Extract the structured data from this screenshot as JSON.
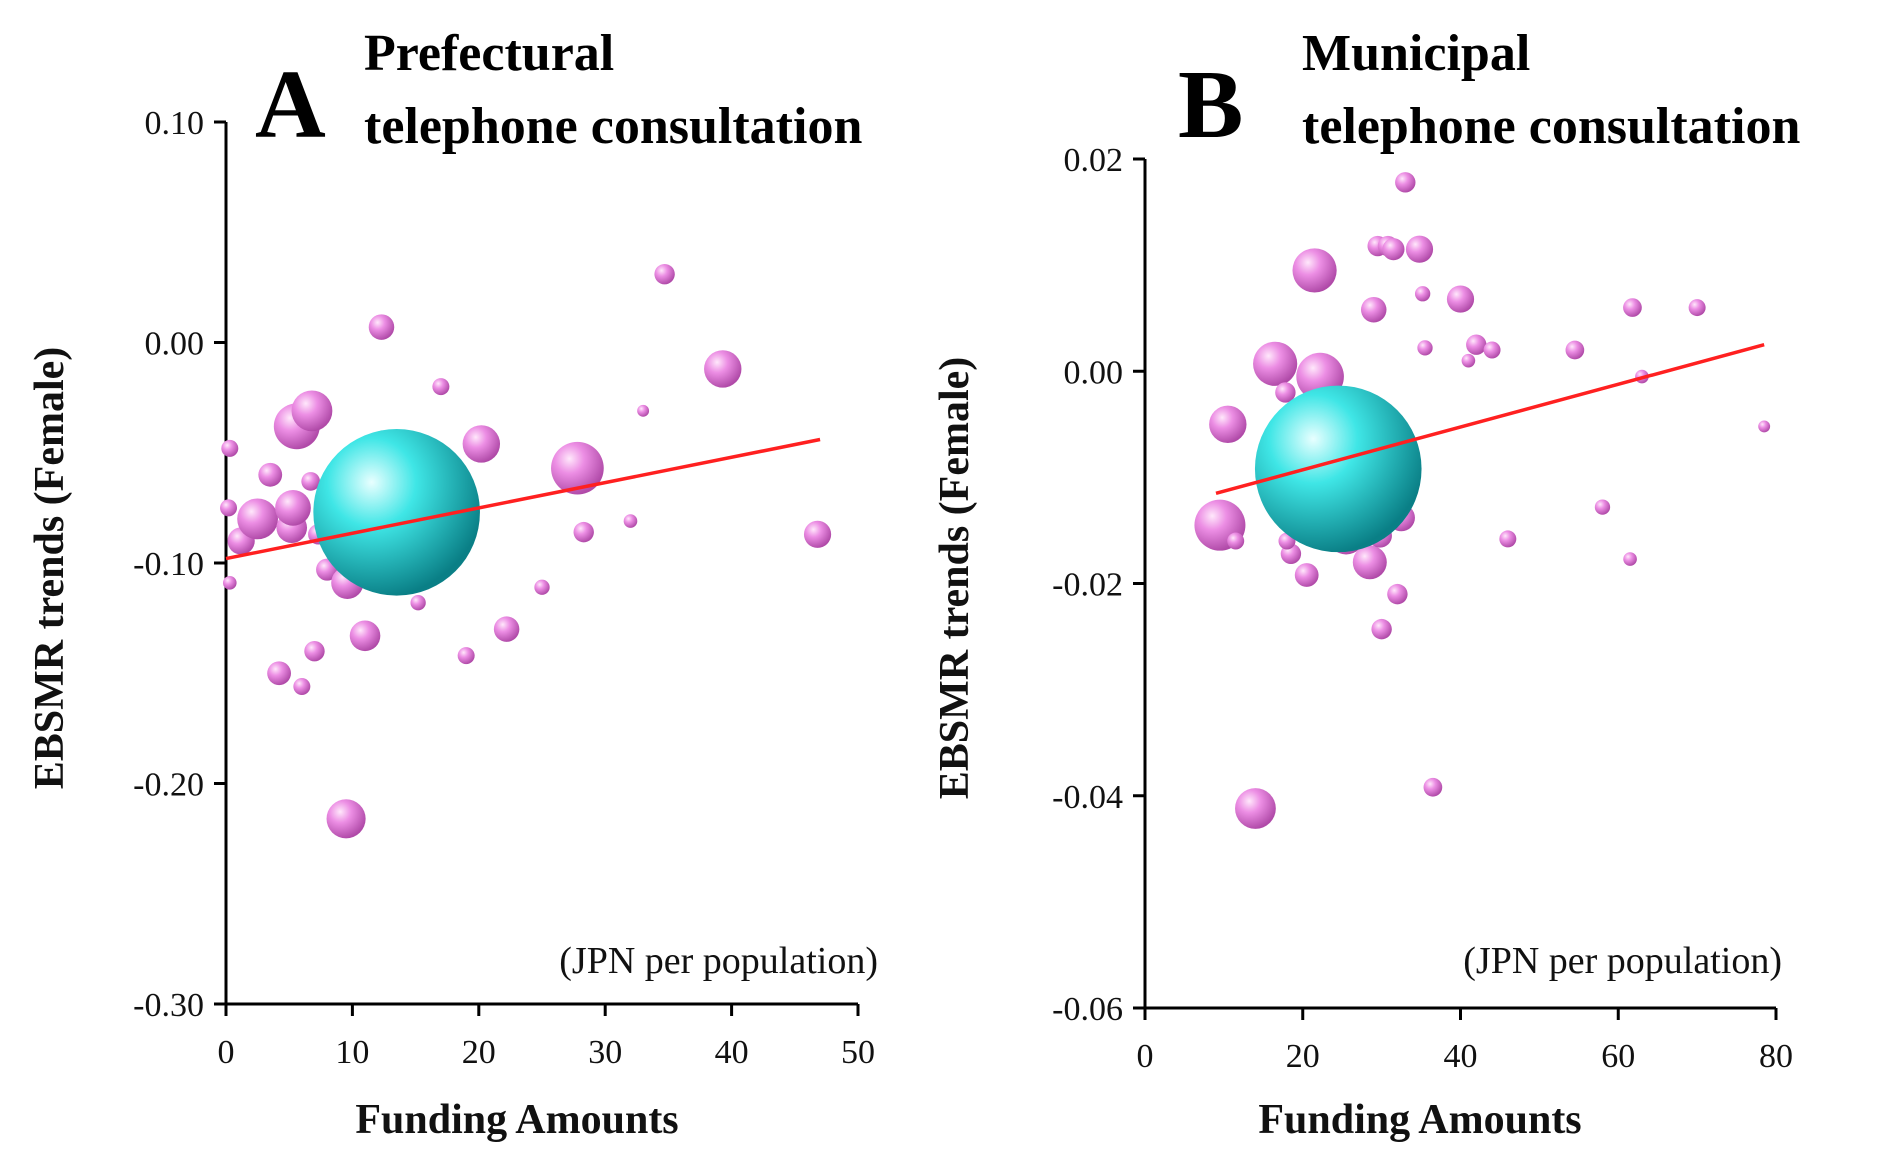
{
  "chart_data": [
    {
      "type": "scatter",
      "panel_letter": "A",
      "title_line1": "Prefectural",
      "title_line2": "telephone consultation",
      "xlabel": "Funding Amounts",
      "ylabel": "EBSMR trends (Female)",
      "unit_note": "(JPN per population)",
      "xlim": [
        0,
        50
      ],
      "ylim": [
        -0.3,
        0.1
      ],
      "x_ticks": [
        "0",
        "10",
        "20",
        "30",
        "40",
        "50"
      ],
      "y_ticks": [
        "-0.30",
        "-0.20",
        "-0.10",
        "0.00",
        "0.10"
      ],
      "trend_line": {
        "x": [
          0,
          47
        ],
        "y": [
          -0.098,
          -0.044
        ],
        "color": "#ff2020"
      },
      "colors": {
        "bubble": "#e070d8",
        "highlight": "#20d8d8"
      },
      "highlight_point": {
        "x": 13.5,
        "y": -0.077,
        "size": 8.5
      },
      "points": [
        {
          "x": 0.3,
          "y": -0.048,
          "size": 1.0
        },
        {
          "x": 0.2,
          "y": -0.075,
          "size": 1.0
        },
        {
          "x": 0.3,
          "y": -0.109,
          "size": 0.8
        },
        {
          "x": 1.2,
          "y": -0.09,
          "size": 1.6
        },
        {
          "x": 2.5,
          "y": -0.08,
          "size": 2.4
        },
        {
          "x": 3.5,
          "y": -0.06,
          "size": 1.4
        },
        {
          "x": 4.2,
          "y": -0.15,
          "size": 1.4
        },
        {
          "x": 5.2,
          "y": -0.084,
          "size": 1.8
        },
        {
          "x": 5.3,
          "y": -0.075,
          "size": 2.1
        },
        {
          "x": 5.6,
          "y": -0.038,
          "size": 2.7
        },
        {
          "x": 6.8,
          "y": -0.031,
          "size": 2.4
        },
        {
          "x": 6.0,
          "y": -0.156,
          "size": 1.0
        },
        {
          "x": 6.7,
          "y": -0.063,
          "size": 1.1
        },
        {
          "x": 7.0,
          "y": -0.14,
          "size": 1.2
        },
        {
          "x": 7.3,
          "y": -0.087,
          "size": 1.2
        },
        {
          "x": 8.0,
          "y": -0.103,
          "size": 1.3
        },
        {
          "x": 8.7,
          "y": -0.085,
          "size": 1.6
        },
        {
          "x": 9.0,
          "y": -0.079,
          "size": 1.2
        },
        {
          "x": 9.2,
          "y": -0.099,
          "size": 1.0
        },
        {
          "x": 9.5,
          "y": -0.216,
          "size": 2.3
        },
        {
          "x": 9.6,
          "y": -0.109,
          "size": 1.9
        },
        {
          "x": 10.5,
          "y": -0.066,
          "size": 1.5
        },
        {
          "x": 11.0,
          "y": -0.133,
          "size": 1.8
        },
        {
          "x": 11.5,
          "y": -0.059,
          "size": 1.0
        },
        {
          "x": 11.7,
          "y": -0.085,
          "size": 1.3
        },
        {
          "x": 12.3,
          "y": 0.007,
          "size": 1.5
        },
        {
          "x": 13.0,
          "y": -0.097,
          "size": 0.8
        },
        {
          "x": 15.2,
          "y": -0.118,
          "size": 0.9
        },
        {
          "x": 15.5,
          "y": -0.05,
          "size": 0.9
        },
        {
          "x": 16.3,
          "y": -0.076,
          "size": 1.2
        },
        {
          "x": 17.0,
          "y": -0.02,
          "size": 1.0
        },
        {
          "x": 19.0,
          "y": -0.142,
          "size": 1.0
        },
        {
          "x": 20.2,
          "y": -0.046,
          "size": 2.2
        },
        {
          "x": 22.2,
          "y": -0.13,
          "size": 1.5
        },
        {
          "x": 25.0,
          "y": -0.111,
          "size": 0.9
        },
        {
          "x": 27.8,
          "y": -0.057,
          "size": 3.1
        },
        {
          "x": 28.3,
          "y": -0.086,
          "size": 1.2
        },
        {
          "x": 32.0,
          "y": -0.081,
          "size": 0.8
        },
        {
          "x": 33.0,
          "y": -0.031,
          "size": 0.7
        },
        {
          "x": 34.7,
          "y": 0.031,
          "size": 1.2
        },
        {
          "x": 39.3,
          "y": -0.012,
          "size": 2.2
        },
        {
          "x": 46.8,
          "y": -0.087,
          "size": 1.6
        }
      ]
    },
    {
      "type": "scatter",
      "panel_letter": "B",
      "title_line1": "Municipal",
      "title_line2": "telephone consultation",
      "xlabel": "Funding Amounts",
      "ylabel": "EBSMR trends (Female)",
      "unit_note": "(JPN per population)",
      "xlim": [
        0,
        80
      ],
      "ylim": [
        -0.06,
        0.02
      ],
      "x_ticks": [
        "0",
        "20",
        "40",
        "60",
        "80"
      ],
      "y_ticks": [
        "-0.06",
        "-0.04",
        "-0.02",
        "0.00",
        "0.02"
      ],
      "trend_line": {
        "x": [
          9,
          78.5
        ],
        "y": [
          -0.0115,
          0.0025
        ],
        "color": "#ff2020"
      },
      "colors": {
        "bubble": "#e070d8",
        "highlight": "#20d8d8"
      },
      "highlight_point": {
        "x": 24.5,
        "y": -0.0092,
        "size": 8.5
      },
      "points": [
        {
          "x": 9.5,
          "y": -0.0145,
          "size": 3.0
        },
        {
          "x": 10.5,
          "y": -0.005,
          "size": 2.2
        },
        {
          "x": 11.5,
          "y": -0.016,
          "size": 1.0
        },
        {
          "x": 14.0,
          "y": -0.0412,
          "size": 2.4
        },
        {
          "x": 16.5,
          "y": 0.0007,
          "size": 2.6
        },
        {
          "x": 17.5,
          "y": -0.0105,
          "size": 2.2
        },
        {
          "x": 17.8,
          "y": -0.002,
          "size": 1.2
        },
        {
          "x": 18.0,
          "y": -0.0128,
          "size": 2.2
        },
        {
          "x": 18.5,
          "y": -0.0172,
          "size": 1.2
        },
        {
          "x": 18.0,
          "y": -0.016,
          "size": 1.0
        },
        {
          "x": 20.0,
          "y": -0.0095,
          "size": 1.0
        },
        {
          "x": 20.5,
          "y": -0.0192,
          "size": 1.4
        },
        {
          "x": 21.5,
          "y": 0.0095,
          "size": 2.6
        },
        {
          "x": 22.2,
          "y": -0.0005,
          "size": 2.8
        },
        {
          "x": 22.5,
          "y": -0.0033,
          "size": 1.2
        },
        {
          "x": 23.8,
          "y": -0.0095,
          "size": 1.0
        },
        {
          "x": 24.5,
          "y": -0.014,
          "size": 1.0
        },
        {
          "x": 25.5,
          "y": -0.0155,
          "size": 2.2
        },
        {
          "x": 26.8,
          "y": -0.015,
          "size": 1.0
        },
        {
          "x": 28.0,
          "y": -0.0142,
          "size": 1.2
        },
        {
          "x": 28.5,
          "y": -0.018,
          "size": 2.0
        },
        {
          "x": 29.0,
          "y": 0.0058,
          "size": 1.5
        },
        {
          "x": 29.5,
          "y": 0.0118,
          "size": 1.2
        },
        {
          "x": 29.7,
          "y": -0.0112,
          "size": 0.8
        },
        {
          "x": 29.8,
          "y": -0.0155,
          "size": 1.4
        },
        {
          "x": 30.0,
          "y": -0.0243,
          "size": 1.2
        },
        {
          "x": 30.8,
          "y": 0.0118,
          "size": 1.2
        },
        {
          "x": 31.5,
          "y": 0.0115,
          "size": 1.3
        },
        {
          "x": 31.8,
          "y": -0.006,
          "size": 0.8
        },
        {
          "x": 32.0,
          "y": -0.021,
          "size": 1.2
        },
        {
          "x": 32.5,
          "y": -0.0138,
          "size": 1.6
        },
        {
          "x": 33.0,
          "y": 0.0178,
          "size": 1.2
        },
        {
          "x": 34.8,
          "y": 0.0115,
          "size": 1.6
        },
        {
          "x": 35.2,
          "y": 0.0073,
          "size": 0.9
        },
        {
          "x": 35.5,
          "y": 0.0022,
          "size": 0.9
        },
        {
          "x": 36.5,
          "y": -0.0392,
          "size": 1.1
        },
        {
          "x": 40.0,
          "y": 0.0068,
          "size": 1.6
        },
        {
          "x": 41.0,
          "y": 0.001,
          "size": 0.8
        },
        {
          "x": 42.0,
          "y": 0.0025,
          "size": 1.2
        },
        {
          "x": 44.0,
          "y": 0.002,
          "size": 1.0
        },
        {
          "x": 46.0,
          "y": -0.0158,
          "size": 1.0
        },
        {
          "x": 54.5,
          "y": 0.002,
          "size": 1.1
        },
        {
          "x": 58.0,
          "y": -0.0128,
          "size": 0.9
        },
        {
          "x": 61.5,
          "y": -0.0177,
          "size": 0.8
        },
        {
          "x": 61.8,
          "y": 0.006,
          "size": 1.1
        },
        {
          "x": 63.0,
          "y": -0.0005,
          "size": 0.8
        },
        {
          "x": 70.0,
          "y": 0.006,
          "size": 1.0
        },
        {
          "x": 78.5,
          "y": -0.0052,
          "size": 0.7
        }
      ]
    }
  ]
}
